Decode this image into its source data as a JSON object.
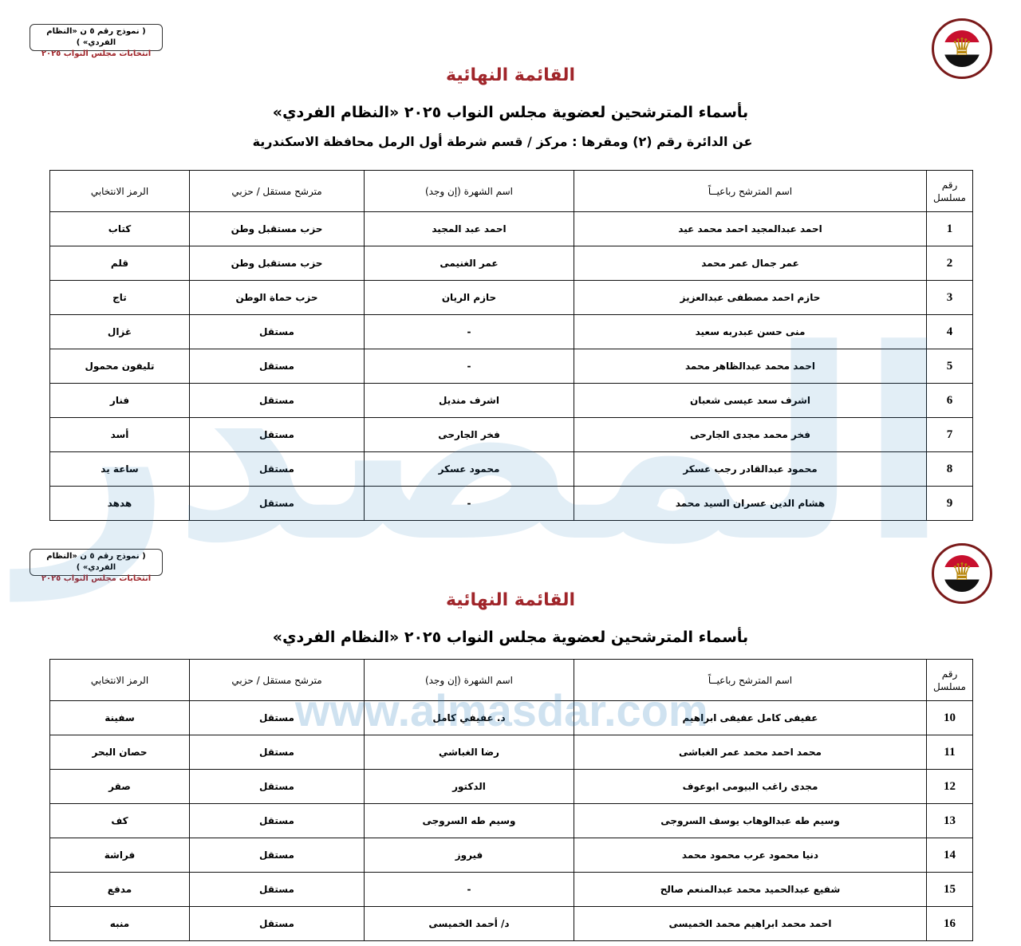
{
  "form_box": {
    "line1": "( نموذج رقم ٥ ن «النظام الفردي» )",
    "line2": "انتخابات مجلس النواب ٢٠٢٥"
  },
  "logo": {
    "text": "الهيئة الوطنية للانتخابات National Election Authority Egypt"
  },
  "watermark": {
    "big": "المصدر",
    "url": "www.almasdar.com",
    "color": "#2a7fc0"
  },
  "colors": {
    "title_red": "#a0252a"
  },
  "page1": {
    "title": "القائمة النهائية",
    "subtitle": "بأسماء المترشحين لعضوية مجلس النواب ٢٠٢٥ «النظام الفردي»",
    "district": "عن الدائرة رقم  (٢)    ومقرها : مركز / قسم شرطة  أول الرمل    محافظة  الاسكندرية"
  },
  "page2": {
    "title": "القائمة النهائية",
    "subtitle": "بأسماء المترشحين لعضوية مجلس النواب ٢٠٢٥ «النظام الفردي»"
  },
  "headers": {
    "serial": "رقم مسلسل",
    "name": "اسم المترشح رباعيــاً",
    "nickname": "اسم الشهرة (إن وجد)",
    "type": "مترشح مستقل / حزبي",
    "symbol": "الرمز الانتخابي"
  },
  "table1": [
    {
      "n": "1",
      "name": "احمد عبدالمجيد احمد محمد عيد",
      "nick": "احمد عبد المجيد",
      "type": "حزب مستقبل وطن",
      "symbol": "كتاب"
    },
    {
      "n": "2",
      "name": "عمر جمال عمر محمد",
      "nick": "عمر الغنيمى",
      "type": "حزب مستقبل وطن",
      "symbol": "قلم"
    },
    {
      "n": "3",
      "name": "حازم احمد مصطفى عبدالعزيز",
      "nick": "حازم الريان",
      "type": "حزب حماة الوطن",
      "symbol": "تاج"
    },
    {
      "n": "4",
      "name": "منى حسن عبدربه سعيد",
      "nick": "-",
      "type": "مستقل",
      "symbol": "غزال"
    },
    {
      "n": "5",
      "name": "احمد محمد عبدالظاهر محمد",
      "nick": "-",
      "type": "مستقل",
      "symbol": "تليفون محمول"
    },
    {
      "n": "6",
      "name": "اشرف سعد عيسى شعبان",
      "nick": "اشرف منديل",
      "type": "مستقل",
      "symbol": "فنار"
    },
    {
      "n": "7",
      "name": "فخر محمد مجدى الجارحى",
      "nick": "فخر الجارحى",
      "type": "مستقل",
      "symbol": "أسد"
    },
    {
      "n": "8",
      "name": "محمود عبدالقادر رجب عسكر",
      "nick": "محمود عسكر",
      "type": "مستقل",
      "symbol": "ساعة يد"
    },
    {
      "n": "9",
      "name": "هشام الدين عسران السيد محمد",
      "nick": "-",
      "type": "مستقل",
      "symbol": "هدهد"
    }
  ],
  "table2": [
    {
      "n": "10",
      "name": "عفيفى كامل عفيفى ابراهيم",
      "nick": "د. عفيفي كامل",
      "type": "مستقل",
      "symbol": "سفينة"
    },
    {
      "n": "11",
      "name": "محمد احمد محمد عمر الغباشى",
      "nick": "رضا الغباشي",
      "type": "مستقل",
      "symbol": "حصان البحر"
    },
    {
      "n": "12",
      "name": "مجدى راغب البيومى ابوعوف",
      "nick": "الدكتور",
      "type": "مستقل",
      "symbol": "صقر"
    },
    {
      "n": "13",
      "name": "وسيم طه عبدالوهاب يوسف السروجى",
      "nick": "وسيم طه السروجى",
      "type": "مستقل",
      "symbol": "كف"
    },
    {
      "n": "14",
      "name": "دنيا محمود عرب محمود محمد",
      "nick": "فيروز",
      "type": "مستقل",
      "symbol": "فراشة"
    },
    {
      "n": "15",
      "name": "شفيع عبدالحميد محمد عبدالمنعم صالح",
      "nick": "-",
      "type": "مستقل",
      "symbol": "مدفع"
    },
    {
      "n": "16",
      "name": "احمد محمد ابراهيم محمد الخميسى",
      "nick": "د/ أحمد الخميسى",
      "type": "مستقل",
      "symbol": "منبه"
    }
  ]
}
